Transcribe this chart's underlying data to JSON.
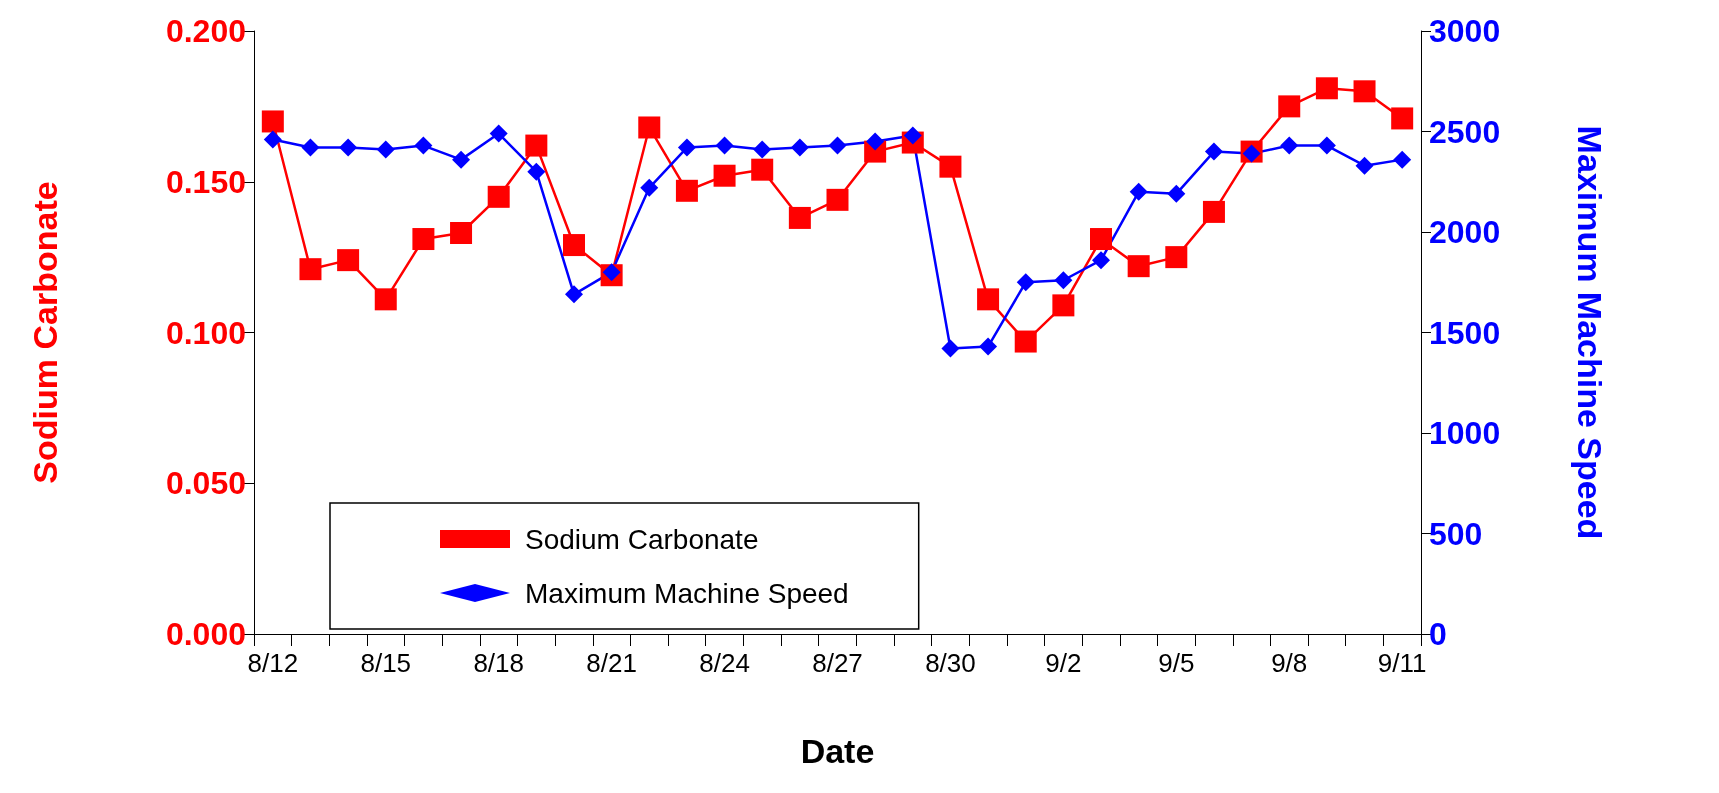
{
  "chart_data": {
    "type": "line",
    "xlabel": "Date",
    "ylabel": "Sodium Carbonate",
    "y2label": "Maximum Machine Speed",
    "categories": [
      "8/12",
      null,
      null,
      "8/15",
      null,
      null,
      "8/18",
      null,
      null,
      "8/21",
      null,
      null,
      "8/24",
      null,
      null,
      "8/27",
      null,
      null,
      "8/30",
      null,
      null,
      "9/2",
      null,
      null,
      "9/5",
      null,
      null,
      "9/8",
      null,
      null,
      "9/11"
    ],
    "series": [
      {
        "name": "Sodium Carbonate",
        "color": "#ff0000",
        "marker": "square",
        "values": [
          0.17,
          0.121,
          0.124,
          0.111,
          0.131,
          0.133,
          0.145,
          0.162,
          0.129,
          0.119,
          0.168,
          0.147,
          0.152,
          0.154,
          0.138,
          0.144,
          0.16,
          0.163,
          0.155,
          0.111,
          0.097,
          0.109,
          0.131,
          0.122,
          0.125,
          0.14,
          0.16,
          0.175,
          0.181,
          0.18,
          0.171
        ]
      },
      {
        "name": "Maximum Machine Speed",
        "color": "#0000ff",
        "marker": "diamond",
        "axis": "y2",
        "values": [
          2460,
          2420,
          2420,
          2410,
          2430,
          2360,
          2490,
          2300,
          1690,
          1800,
          2220,
          2420,
          2430,
          2410,
          2420,
          2430,
          2450,
          2480,
          1420,
          1430,
          1750,
          1760,
          1860,
          2200,
          2190,
          2400,
          2390,
          2430,
          2430,
          2330,
          2360
        ]
      }
    ],
    "ylim": [
      0,
      0.2
    ],
    "yticks": [
      {
        "value": 0,
        "label": "0.000"
      },
      {
        "value": 0.05,
        "label": "0.050"
      },
      {
        "value": 0.1,
        "label": "0.100"
      },
      {
        "value": 0.15,
        "label": "0.150"
      },
      {
        "value": 0.2,
        "label": "0.200"
      }
    ],
    "y2lim": [
      0,
      3000
    ],
    "y2ticks": [
      0,
      500,
      1000,
      1500,
      2000,
      2500,
      3000
    ],
    "legend": "bottom left",
    "grid": false,
    "line_style": "solid"
  }
}
